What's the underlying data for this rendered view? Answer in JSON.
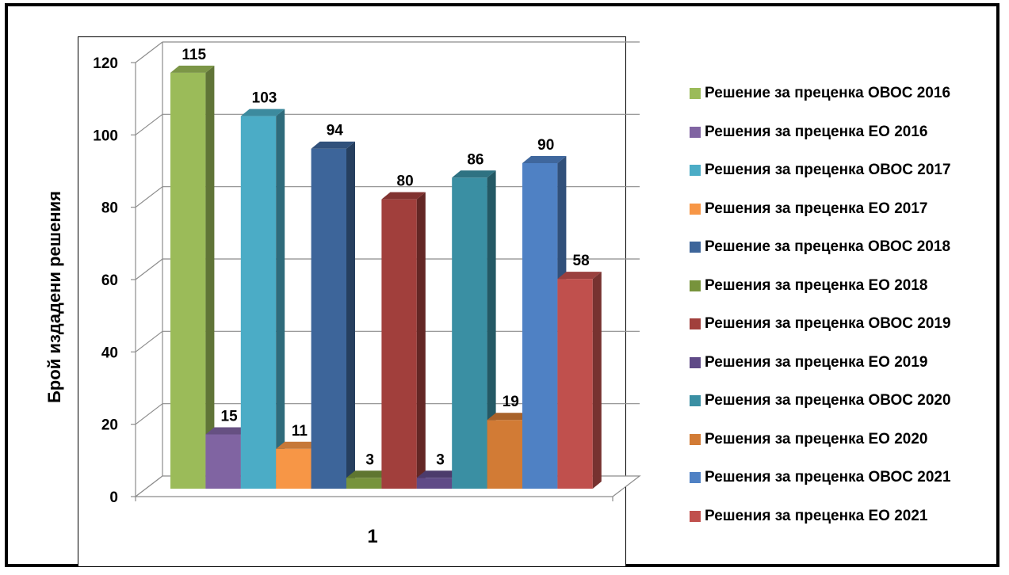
{
  "chart_data": {
    "type": "bar",
    "categories": [
      "1"
    ],
    "xlabel": "1",
    "ylabel": "Брой издадени решения",
    "ylim": [
      0,
      120
    ],
    "yticks": [
      0,
      20,
      40,
      60,
      80,
      100,
      120
    ],
    "grid": true,
    "legend_position": "right",
    "series": [
      {
        "name": "Решение за преценка ОВОС 2016",
        "values": [
          115
        ],
        "color": "#9BBB59"
      },
      {
        "name": "Решения за преценка ЕО 2016",
        "values": [
          15
        ],
        "color": "#8064A2"
      },
      {
        "name": "Решения за преценка ОВОС 2017",
        "values": [
          103
        ],
        "color": "#4BACC6"
      },
      {
        "name": "Решения за преценка ЕО 2017",
        "values": [
          11
        ],
        "color": "#F79646"
      },
      {
        "name": "Решение за преценка ОВОС 2018",
        "values": [
          94
        ],
        "color": "#3D659A"
      },
      {
        "name": "Решения за преценка ЕО 2018",
        "values": [
          3
        ],
        "color": "#77933C"
      },
      {
        "name": "Решения за преценка ОВОС 2019",
        "values": [
          80
        ],
        "color": "#A13F3C"
      },
      {
        "name": "Решения за преценка ЕО 2019",
        "values": [
          3
        ],
        "color": "#5F4A87"
      },
      {
        "name": "Решения за преценка ОВОС 2020",
        "values": [
          86
        ],
        "color": "#3A8FA3"
      },
      {
        "name": "Решения за преценка ЕО 2020",
        "values": [
          19
        ],
        "color": "#D27B35"
      },
      {
        "name": "Решения за преценка ОВОС 2021",
        "values": [
          90
        ],
        "color": "#4F81C4"
      },
      {
        "name": "Решения за преценка ЕО 2021",
        "values": [
          58
        ],
        "color": "#C0504D"
      }
    ]
  }
}
